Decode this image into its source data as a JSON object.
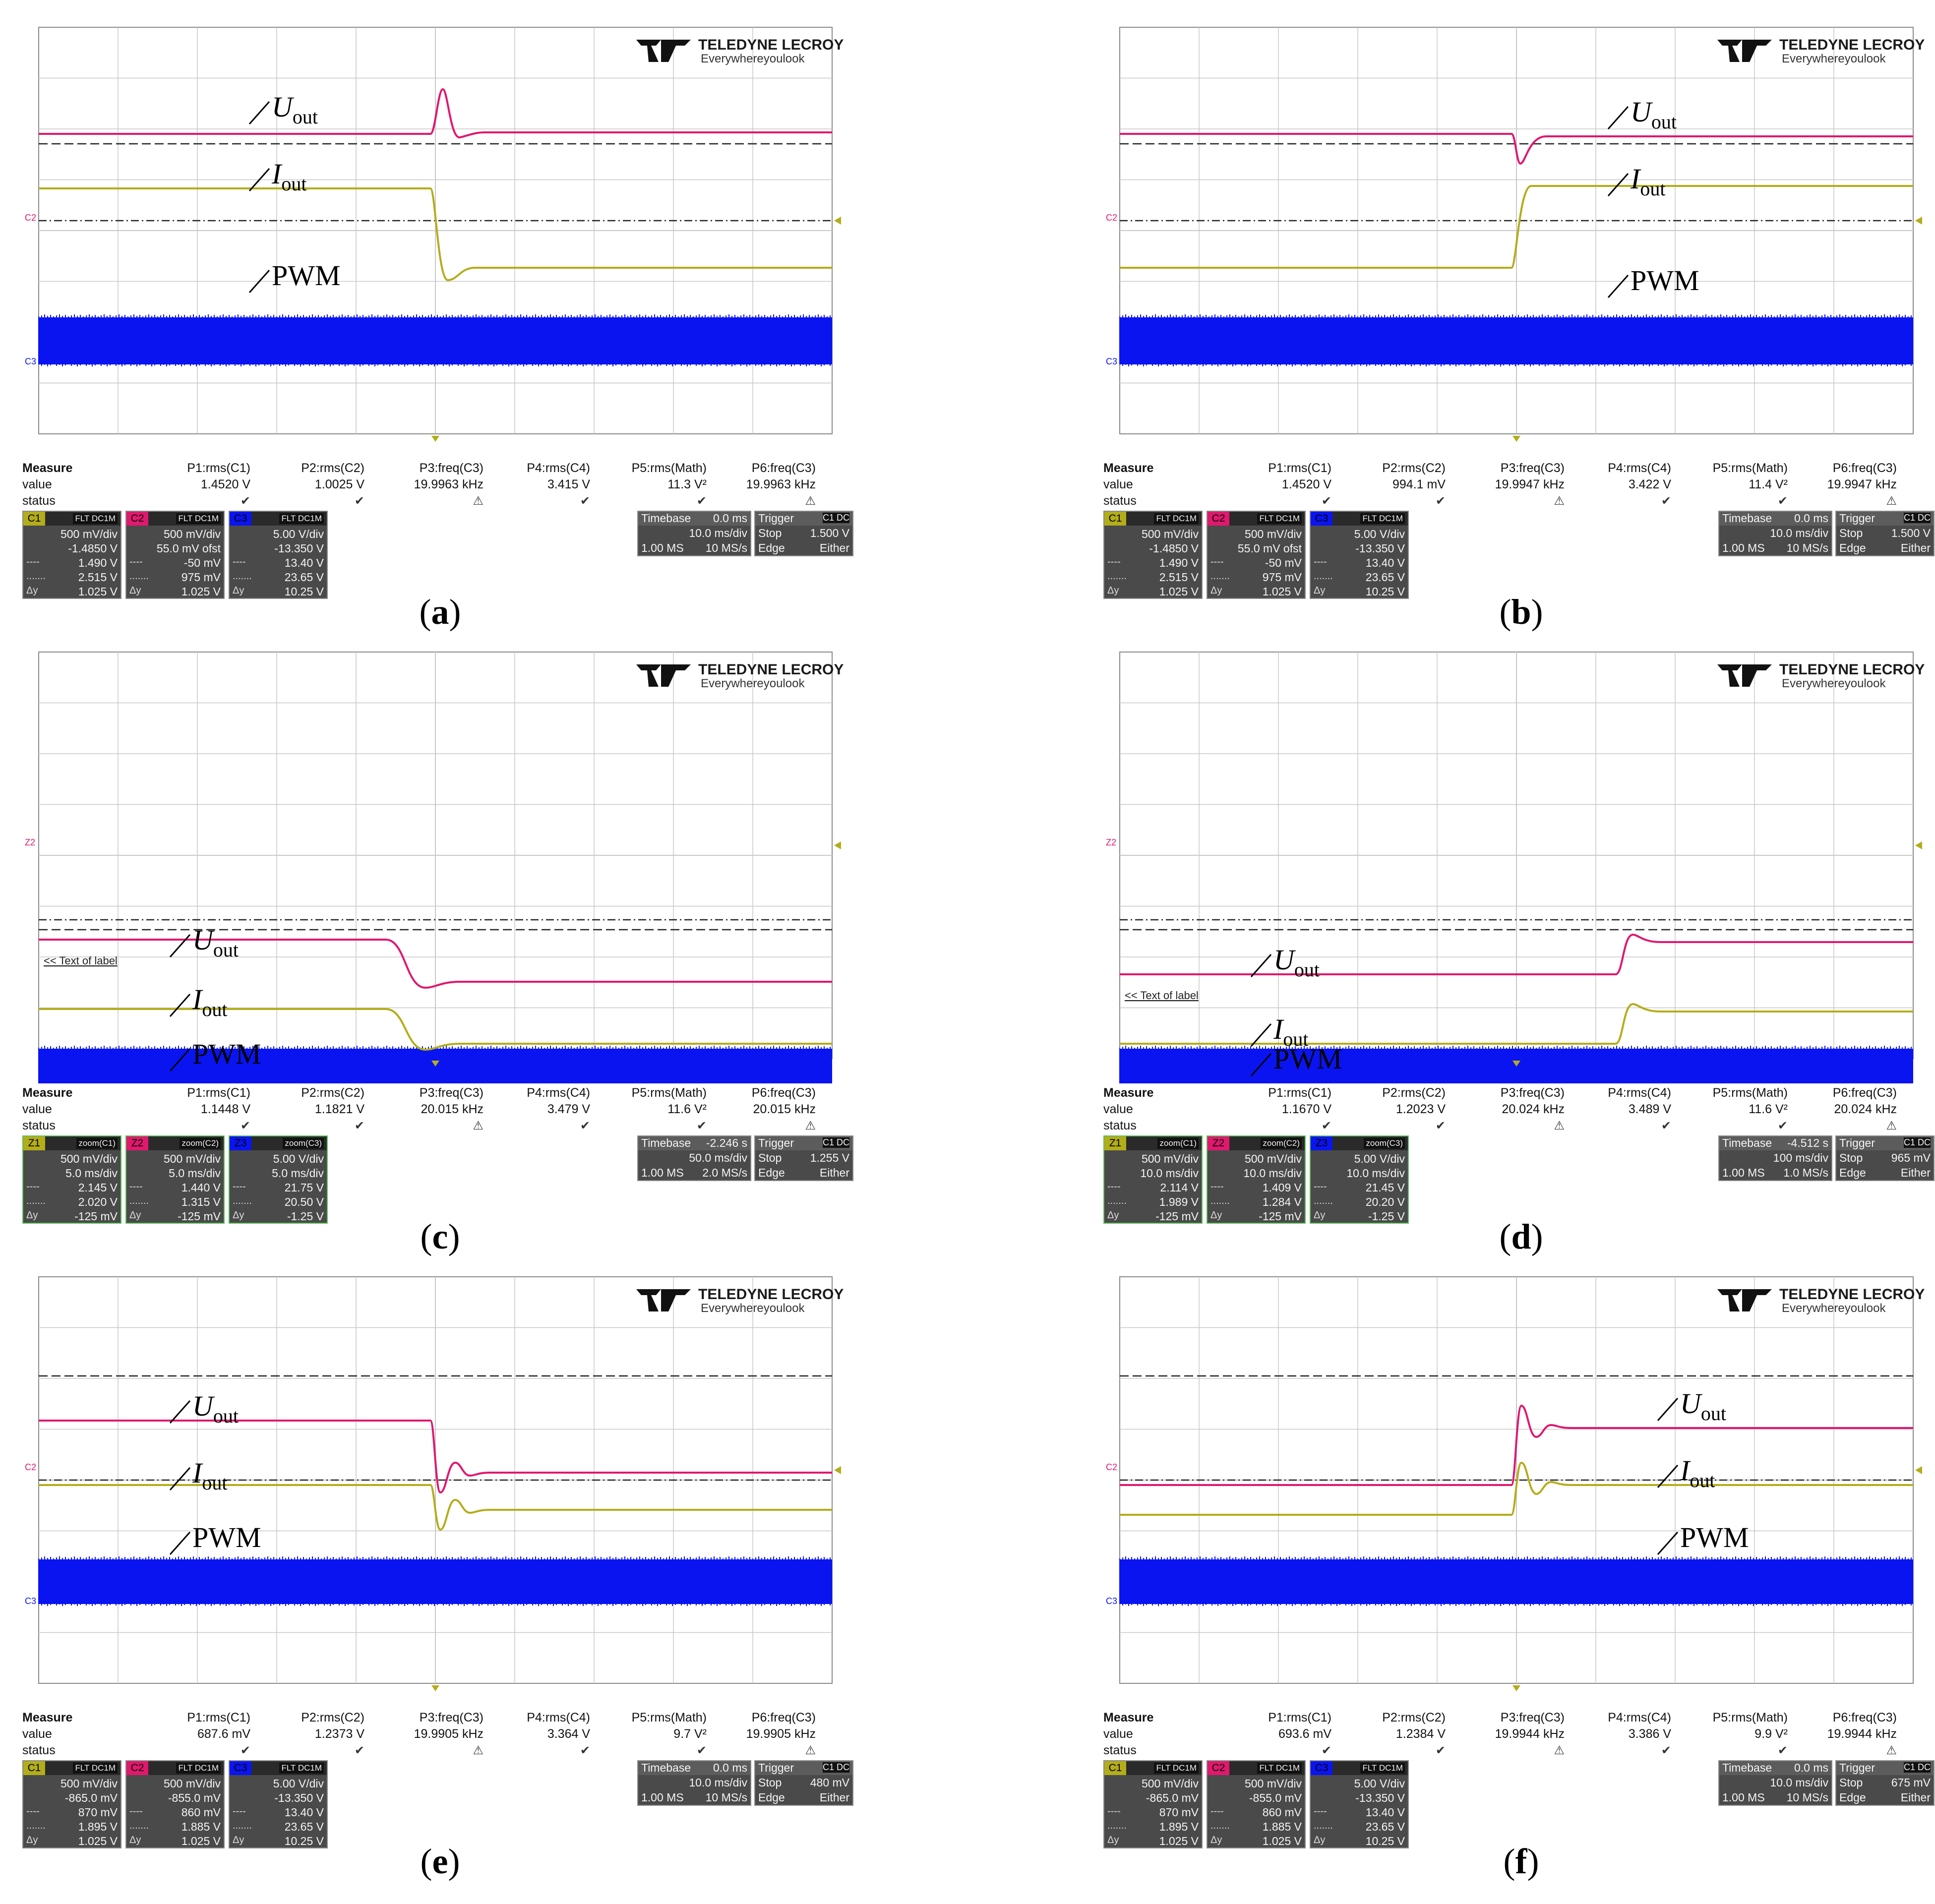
{
  "brand": {
    "name": "TELEDYNE LECROY",
    "tagline": "Everywhereyoulook"
  },
  "trace_labels": {
    "u": "U",
    "u_sub": "out",
    "i": "I",
    "i_sub": "out",
    "pwm": "PWM"
  },
  "colors": {
    "u": "#e0186e",
    "i": "#b3ad1a",
    "pwm": "#0a14f0",
    "grid": "#9a9a9a"
  },
  "measure_headers": {
    "title": "Measure",
    "row_value": "value",
    "row_status": "status"
  },
  "panels": [
    {
      "caption": "a",
      "measure": {
        "params": [
          "P1:rms(C1)",
          "P2:rms(C2)",
          "P3:freq(C3)",
          "P4:rms(C4)",
          "P5:rms(Math)",
          "P6:freq(C3)"
        ],
        "values": [
          "1.4520 V",
          "1.0025 V",
          "19.9963 kHz",
          "3.415 V",
          "11.3 V²",
          "19.9963 kHz"
        ]
      },
      "channels": [
        {
          "tag": "C1",
          "tag2": "FLT DC1M",
          "lines": [
            "500 mV/div",
            "-1.4850 V",
            "1.490 V",
            "2.515 V",
            "1.025 V"
          ]
        },
        {
          "tag": "C2",
          "tag2": "FLT DC1M",
          "lines": [
            "500 mV/div",
            "55.0 mV ofst",
            "-50 mV",
            "975 mV",
            "1.025 V"
          ]
        },
        {
          "tag": "C3",
          "tag2": "FLT DC1M",
          "lines": [
            "5.00 V/div",
            "-13.350 V",
            "13.40 V",
            "23.65 V",
            "10.25 V"
          ]
        }
      ],
      "timebase": {
        "title": "Timebase",
        "offset": "0.0 ms",
        "div": "10.0 ms/div",
        "mem": "1.00 MS",
        "rate": "10 MS/s"
      },
      "trigger": {
        "title": "Trigger",
        "badge": "C1 DC",
        "mode": "Stop",
        "level": "1.500 V",
        "type": "Edge",
        "slope": "Either"
      }
    },
    {
      "caption": "b",
      "measure": {
        "params": [
          "P1:rms(C1)",
          "P2:rms(C2)",
          "P3:freq(C3)",
          "P4:rms(C4)",
          "P5:rms(Math)",
          "P6:freq(C3)"
        ],
        "values": [
          "1.4520 V",
          "994.1 mV",
          "19.9947 kHz",
          "3.422 V",
          "11.4 V²",
          "19.9947 kHz"
        ]
      },
      "channels": [
        {
          "tag": "C1",
          "tag2": "FLT DC1M",
          "lines": [
            "500 mV/div",
            "-1.4850 V",
            "1.490 V",
            "2.515 V",
            "1.025 V"
          ]
        },
        {
          "tag": "C2",
          "tag2": "FLT DC1M",
          "lines": [
            "500 mV/div",
            "55.0 mV ofst",
            "-50 mV",
            "975 mV",
            "1.025 V"
          ]
        },
        {
          "tag": "C3",
          "tag2": "FLT DC1M",
          "lines": [
            "5.00 V/div",
            "-13.350 V",
            "13.40 V",
            "23.65 V",
            "10.25 V"
          ]
        }
      ],
      "timebase": {
        "title": "Timebase",
        "offset": "0.0 ms",
        "div": "10.0 ms/div",
        "mem": "1.00 MS",
        "rate": "10 MS/s"
      },
      "trigger": {
        "title": "Trigger",
        "badge": "C1 DC",
        "mode": "Stop",
        "level": "1.500 V",
        "type": "Edge",
        "slope": "Either"
      }
    },
    {
      "caption": "c",
      "label_text": "<< Text of label",
      "measure": {
        "params": [
          "P1:rms(C1)",
          "P2:rms(C2)",
          "P3:freq(C3)",
          "P4:rms(C4)",
          "P5:rms(Math)",
          "P6:freq(C3)"
        ],
        "values": [
          "1.1448 V",
          "1.1821 V",
          "20.015 kHz",
          "3.479 V",
          "11.6 V²",
          "20.015 kHz"
        ]
      },
      "channels": [
        {
          "tag": "Z1",
          "tag2": "zoom(C1)",
          "lines": [
            "500 mV/div",
            "5.0 ms/div",
            "2.145 V",
            "2.020 V",
            "-125 mV"
          ]
        },
        {
          "tag": "Z2",
          "tag2": "zoom(C2)",
          "lines": [
            "500 mV/div",
            "5.0 ms/div",
            "1.440 V",
            "1.315 V",
            "-125 mV"
          ]
        },
        {
          "tag": "Z3",
          "tag2": "zoom(C3)",
          "lines": [
            "5.00 V/div",
            "5.0 ms/div",
            "21.75 V",
            "20.50 V",
            "-1.25 V"
          ]
        }
      ],
      "timebase": {
        "title": "Timebase",
        "offset": "-2.246 s",
        "div": "50.0 ms/div",
        "mem": "1.00 MS",
        "rate": "2.0 MS/s"
      },
      "trigger": {
        "title": "Trigger",
        "badge": "C1 DC",
        "mode": "Stop",
        "level": "1.255 V",
        "type": "Edge",
        "slope": "Either"
      }
    },
    {
      "caption": "d",
      "label_text": "<< Text of label",
      "measure": {
        "params": [
          "P1:rms(C1)",
          "P2:rms(C2)",
          "P3:freq(C3)",
          "P4:rms(C4)",
          "P5:rms(Math)",
          "P6:freq(C3)"
        ],
        "values": [
          "1.1670 V",
          "1.2023 V",
          "20.024 kHz",
          "3.489 V",
          "11.6 V²",
          "20.024 kHz"
        ]
      },
      "channels": [
        {
          "tag": "Z1",
          "tag2": "zoom(C1)",
          "lines": [
            "500 mV/div",
            "10.0 ms/div",
            "2.114 V",
            "1.989 V",
            "-125 mV"
          ]
        },
        {
          "tag": "Z2",
          "tag2": "zoom(C2)",
          "lines": [
            "500 mV/div",
            "10.0 ms/div",
            "1.409 V",
            "1.284 V",
            "-125 mV"
          ]
        },
        {
          "tag": "Z3",
          "tag2": "zoom(C3)",
          "lines": [
            "5.00 V/div",
            "10.0 ms/div",
            "21.45 V",
            "20.20 V",
            "-1.25 V"
          ]
        }
      ],
      "timebase": {
        "title": "Timebase",
        "offset": "-4.512 s",
        "div": "100 ms/div",
        "mem": "1.00 MS",
        "rate": "1.0 MS/s"
      },
      "trigger": {
        "title": "Trigger",
        "badge": "C1 DC",
        "mode": "Stop",
        "level": "965 mV",
        "type": "Edge",
        "slope": "Either"
      }
    },
    {
      "caption": "e",
      "measure": {
        "params": [
          "P1:rms(C1)",
          "P2:rms(C2)",
          "P3:freq(C3)",
          "P4:rms(C4)",
          "P5:rms(Math)",
          "P6:freq(C3)"
        ],
        "values": [
          "687.6 mV",
          "1.2373 V",
          "19.9905 kHz",
          "3.364 V",
          "9.7 V²",
          "19.9905 kHz"
        ]
      },
      "channels": [
        {
          "tag": "C1",
          "tag2": "FLT DC1M",
          "lines": [
            "500 mV/div",
            "-865.0 mV",
            "870 mV",
            "1.895 V",
            "1.025 V"
          ]
        },
        {
          "tag": "C2",
          "tag2": "FLT DC1M",
          "lines": [
            "500 mV/div",
            "-855.0 mV",
            "860 mV",
            "1.885 V",
            "1.025 V"
          ]
        },
        {
          "tag": "C3",
          "tag2": "FLT DC1M",
          "lines": [
            "5.00 V/div",
            "-13.350 V",
            "13.40 V",
            "23.65 V",
            "10.25 V"
          ]
        }
      ],
      "timebase": {
        "title": "Timebase",
        "offset": "0.0 ms",
        "div": "10.0 ms/div",
        "mem": "1.00 MS",
        "rate": "10 MS/s"
      },
      "trigger": {
        "title": "Trigger",
        "badge": "C1 DC",
        "mode": "Stop",
        "level": "480 mV",
        "type": "Edge",
        "slope": "Either"
      }
    },
    {
      "caption": "f",
      "measure": {
        "params": [
          "P1:rms(C1)",
          "P2:rms(C2)",
          "P3:freq(C3)",
          "P4:rms(C4)",
          "P5:rms(Math)",
          "P6:freq(C3)"
        ],
        "values": [
          "693.6 mV",
          "1.2384 V",
          "19.9944 kHz",
          "3.386 V",
          "9.9 V²",
          "19.9944 kHz"
        ]
      },
      "channels": [
        {
          "tag": "C1",
          "tag2": "FLT DC1M",
          "lines": [
            "500 mV/div",
            "-865.0 mV",
            "870 mV",
            "1.895 V",
            "1.025 V"
          ]
        },
        {
          "tag": "C2",
          "tag2": "FLT DC1M",
          "lines": [
            "500 mV/div",
            "-855.0 mV",
            "860 mV",
            "1.885 V",
            "1.025 V"
          ]
        },
        {
          "tag": "C3",
          "tag2": "FLT DC1M",
          "lines": [
            "5.00 V/div",
            "-13.350 V",
            "13.40 V",
            "23.65 V",
            "10.25 V"
          ]
        }
      ],
      "timebase": {
        "title": "Timebase",
        "offset": "0.0 ms",
        "div": "10.0 ms/div",
        "mem": "1.00 MS",
        "rate": "10 MS/s"
      },
      "trigger": {
        "title": "Trigger",
        "badge": "C1 DC",
        "mode": "Stop",
        "level": "675 mV",
        "type": "Edge",
        "slope": "Either"
      }
    }
  ]
}
